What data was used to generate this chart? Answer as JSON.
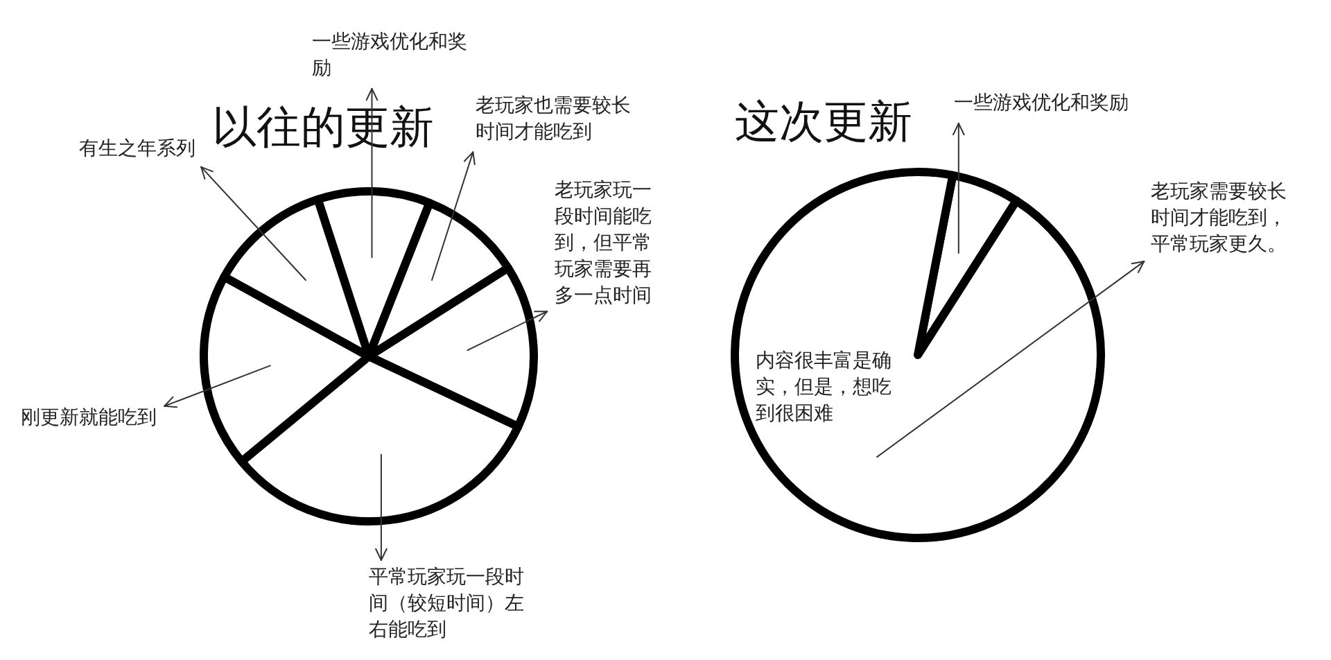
{
  "chart_data": [
    {
      "type": "pie",
      "title": "以往的更新",
      "categories": [
        "一些游戏优化和奖励",
        "老玩家也需要较长时间才能吃到",
        "老玩家玩一段时间能吃到，但平常玩家需要再多一点时间",
        "平常玩家玩一段时间（较短时间）左右能吃到",
        "刚更新就能吃到",
        "有生之年系列"
      ],
      "values": [
        11,
        10,
        16,
        32,
        19,
        12
      ],
      "colors": [
        "#ffffff",
        "#ffffff",
        "#ffffff",
        "#ffffff",
        "#ffffff",
        "#ffffff"
      ]
    },
    {
      "type": "pie",
      "title": "这次更新",
      "categories": [
        "一些游戏优化和奖励",
        "老玩家需要较长时间才能吃到，平常玩家更久。"
      ],
      "values": [
        6,
        94
      ],
      "colors": [
        "#ffffff",
        "#ffffff"
      ],
      "annotations": [
        "内容很丰富是确实，但是，想吃到很困难"
      ]
    }
  ]
}
